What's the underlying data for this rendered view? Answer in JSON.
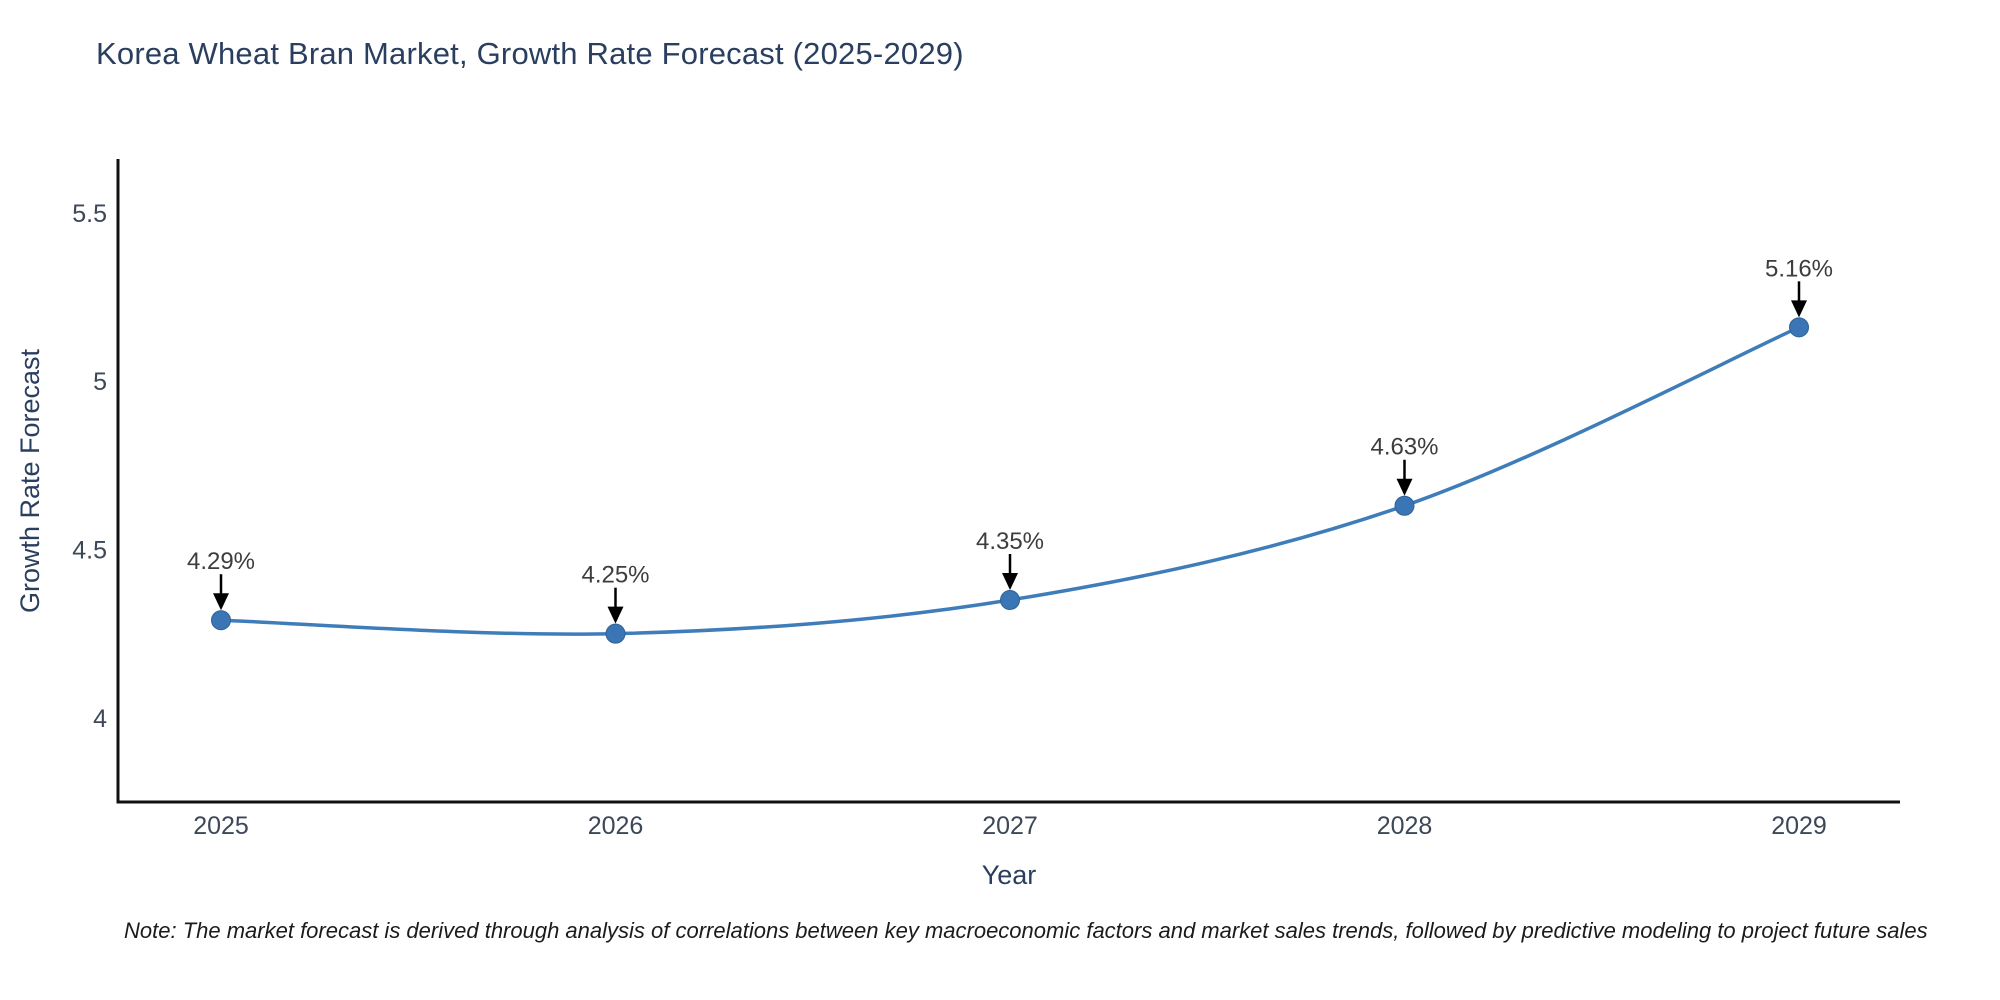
{
  "title": "Korea Wheat Bran Market, Growth Rate Forecast (2025-2029)",
  "note": "Note: The market forecast is derived through analysis of correlations between key macroeconomic factors and market sales trends, followed by predictive modeling to project future sales",
  "chart_data": {
    "type": "line",
    "title": "Korea Wheat Bran Market, Growth Rate Forecast (2025-2029)",
    "xlabel": "Year",
    "ylabel": "Growth Rate Forecast",
    "categories": [
      "2025",
      "2026",
      "2027",
      "2028",
      "2029"
    ],
    "values": [
      4.29,
      4.25,
      4.35,
      4.63,
      5.16
    ],
    "point_labels": [
      "4.29%",
      "4.25%",
      "4.35%",
      "4.63%",
      "5.16%"
    ],
    "yticks": [
      4,
      4.5,
      5,
      5.5
    ],
    "ylim": [
      3.75,
      5.66
    ],
    "line_shape": "spline",
    "grid": false,
    "legend": false,
    "annotation_style": "black-arrow-down-to-point",
    "colors": {
      "line": "#3e7dba",
      "marker": "#3a76b5",
      "marker_edge": "#2f6195",
      "axis_line": "#111111",
      "tick_label": "#3c4758",
      "annotation_text": "#3d3d3d",
      "title_text": "#2a3f5f",
      "background": "#ffffff"
    }
  }
}
